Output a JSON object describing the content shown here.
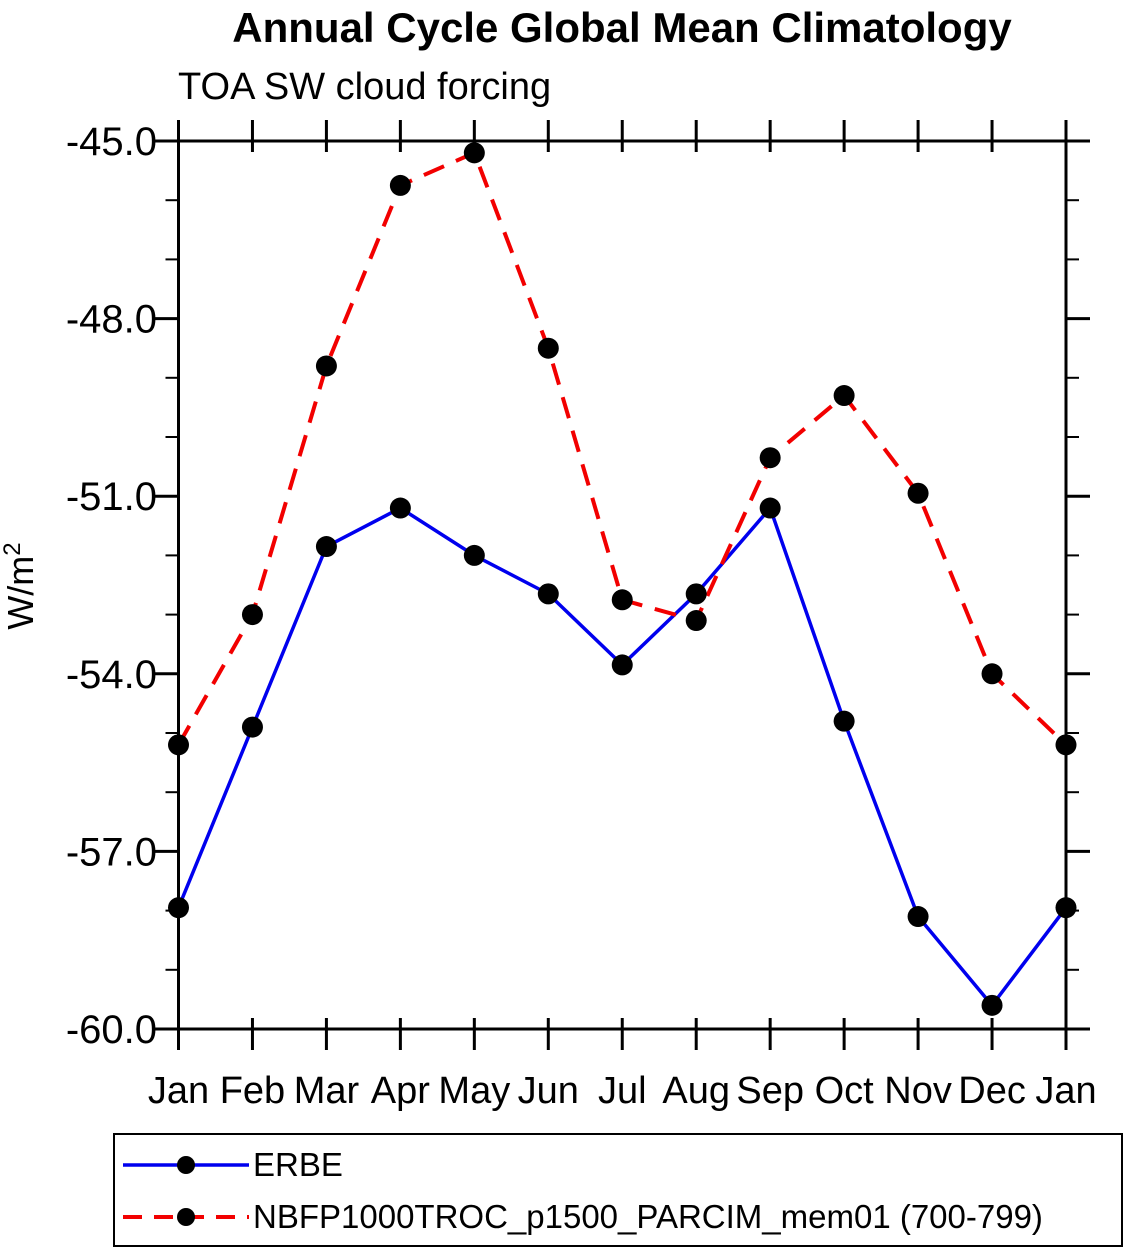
{
  "title": "Annual Cycle Global Mean Climatology",
  "subtitle": "TOA SW cloud forcing",
  "y_axis_title": {
    "base": "W/m",
    "sup": "2"
  },
  "chart_data": {
    "type": "line",
    "categories": [
      "Jan",
      "Feb",
      "Mar",
      "Apr",
      "May",
      "Jun",
      "Jul",
      "Aug",
      "Sep",
      "Oct",
      "Nov",
      "Dec",
      "Jan"
    ],
    "series": [
      {
        "name": "ERBE",
        "color": "#0000ee",
        "line_style": "solid",
        "marker": "filled-black-circle",
        "values": [
          -57.95,
          -54.9,
          -51.85,
          -51.2,
          -52.0,
          -52.65,
          -53.85,
          -52.65,
          -51.2,
          -54.8,
          -58.1,
          -59.6,
          -57.95
        ]
      },
      {
        "name": "NBFP1000TROC_p1500_PARCIM_mem01 (700-799)",
        "color": "#f20000",
        "line_style": "dashed",
        "marker": "filled-black-circle",
        "values": [
          -55.2,
          -53.0,
          -48.8,
          -45.75,
          -45.2,
          -48.5,
          -52.75,
          -53.1,
          -50.35,
          -49.3,
          -50.95,
          -54.0,
          -55.2
        ]
      }
    ],
    "ylim": [
      -60.0,
      -45.0
    ],
    "yticks_major": [
      -45.0,
      -48.0,
      -51.0,
      -54.0,
      -57.0,
      -60.0
    ],
    "ytick_minor_step": 1.0,
    "grid": false,
    "frame": "box-with-outward-yticks-and-crossing-xticks",
    "legend_position": "bottom-box",
    "marker_color": "#000000",
    "axis_color": "#000000"
  }
}
